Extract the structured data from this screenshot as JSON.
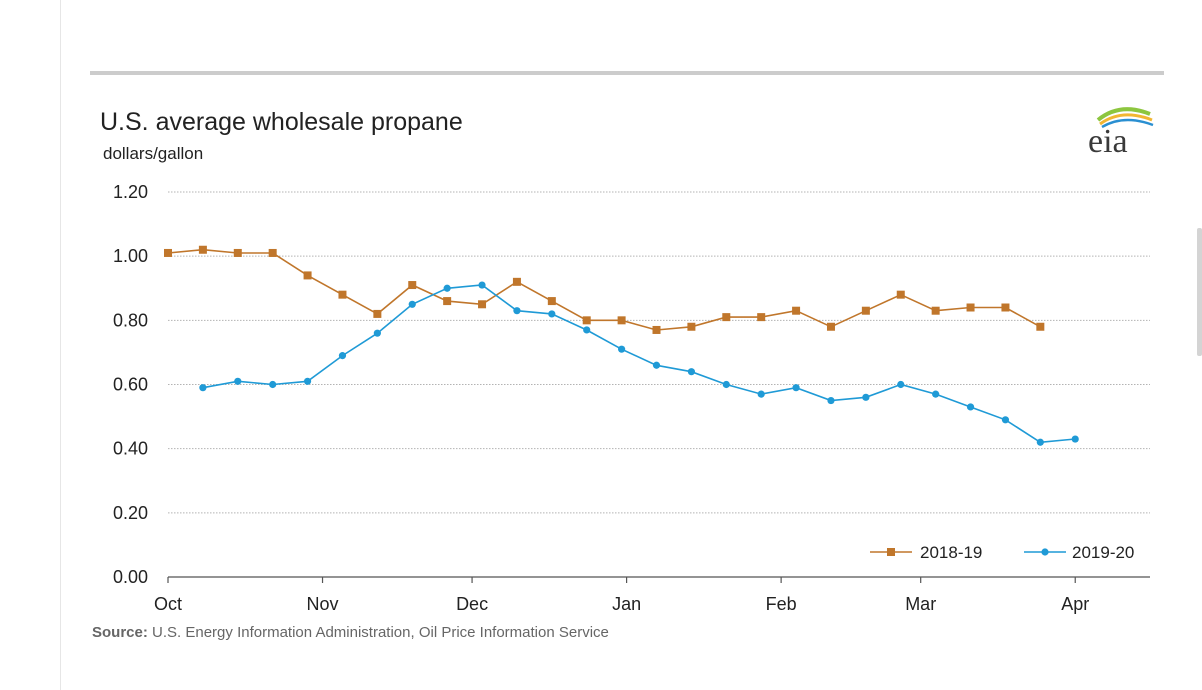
{
  "chart_data": {
    "type": "line",
    "title": "U.S. average wholesale propane",
    "ylabel": "dollars/gallon",
    "source_label": "Source:",
    "source_text": "U.S. Energy Information Administration, Oil Price Information Service",
    "ylim": [
      0,
      1.2
    ],
    "y_ticks": [
      "0.00",
      "0.20",
      "0.40",
      "0.60",
      "0.80",
      "1.00",
      "1.20"
    ],
    "x_ticks": [
      "Oct",
      "Nov",
      "Dec",
      "Jan",
      "Feb",
      "Mar",
      "Apr"
    ],
    "grid": true,
    "legend_position": "bottom-right",
    "series": [
      {
        "name": "2018-19",
        "color": "#c0762b",
        "marker": "square",
        "x": [
          "Oct 1",
          "Oct 8",
          "Oct 15",
          "Oct 22",
          "Oct 29",
          "Nov 5",
          "Nov 12",
          "Nov 19",
          "Nov 26",
          "Dec 3",
          "Dec 10",
          "Dec 17",
          "Dec 24",
          "Dec 31",
          "Jan 7",
          "Jan 14",
          "Jan 21",
          "Jan 28",
          "Feb 4",
          "Feb 11",
          "Feb 18",
          "Feb 25",
          "Mar 4",
          "Mar 11",
          "Mar 18",
          "Mar 25"
        ],
        "values": [
          1.01,
          1.02,
          1.01,
          1.01,
          0.94,
          0.88,
          0.82,
          0.91,
          0.86,
          0.85,
          0.92,
          0.86,
          0.8,
          0.8,
          0.77,
          0.78,
          0.81,
          0.81,
          0.83,
          0.78,
          0.83,
          0.88,
          0.83,
          0.84,
          0.84,
          0.78
        ]
      },
      {
        "name": "2019-20",
        "color": "#1f9ad6",
        "marker": "circle",
        "x": [
          "Oct 8",
          "Oct 15",
          "Oct 22",
          "Oct 29",
          "Nov 5",
          "Nov 12",
          "Nov 19",
          "Nov 26",
          "Dec 3",
          "Dec 10",
          "Dec 17",
          "Dec 24",
          "Dec 31",
          "Jan 7",
          "Jan 14",
          "Jan 21",
          "Jan 28",
          "Feb 4",
          "Feb 11",
          "Feb 18",
          "Feb 25",
          "Mar 4",
          "Mar 11",
          "Mar 18",
          "Mar 25",
          "Apr 1"
        ],
        "values": [
          0.59,
          0.61,
          0.6,
          0.61,
          0.69,
          0.76,
          0.85,
          0.9,
          0.91,
          0.83,
          0.82,
          0.77,
          0.71,
          0.66,
          0.64,
          0.6,
          0.57,
          0.59,
          0.55,
          0.56,
          0.6,
          0.57,
          0.53,
          0.49,
          0.42,
          0.43
        ]
      }
    ]
  }
}
